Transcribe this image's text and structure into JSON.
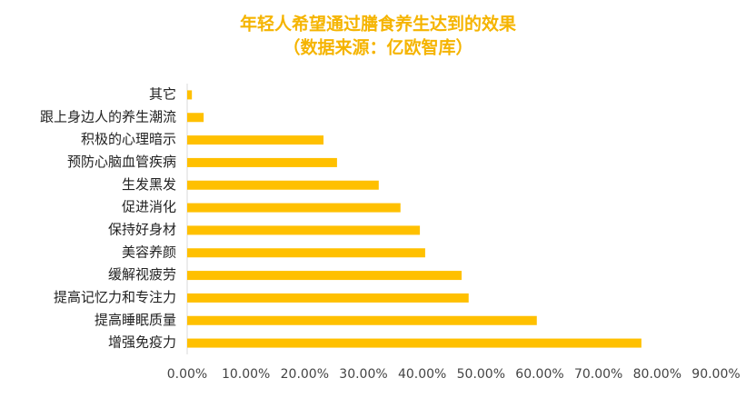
{
  "chart_data": {
    "type": "hbar",
    "title": "年轻人希望通过膳食养生达到的效果",
    "subtitle": "（数据来源：亿欧智库）",
    "categories": [
      "其它",
      "跟上身边人的养生潮流",
      "积极的心理暗示",
      "预防心脑血管疾病",
      "生发黑发",
      "促进消化",
      "保持好身材",
      "美容养颜",
      "缓解视疲劳",
      "提高记忆力和专注力",
      "提高睡眠质量",
      "增强免疫力"
    ],
    "values": [
      0.8,
      2.8,
      23.2,
      25.5,
      32.6,
      36.3,
      39.6,
      40.5,
      46.7,
      47.9,
      59.5,
      77.3
    ],
    "color": "#ffc000",
    "xlim": [
      0,
      90
    ],
    "xticks": [
      {
        "value": 0,
        "label": "0.00%"
      },
      {
        "value": 10,
        "label": "10.00%"
      },
      {
        "value": 20,
        "label": "20.00%"
      },
      {
        "value": 30,
        "label": "30.00%"
      },
      {
        "value": 40,
        "label": "40.00%"
      },
      {
        "value": 50,
        "label": "50.00%"
      },
      {
        "value": 60,
        "label": "60.00%"
      },
      {
        "value": 70,
        "label": "70.00%"
      },
      {
        "value": 80,
        "label": "80.00%"
      },
      {
        "value": 90,
        "label": "90.00%"
      }
    ],
    "grid": false
  }
}
